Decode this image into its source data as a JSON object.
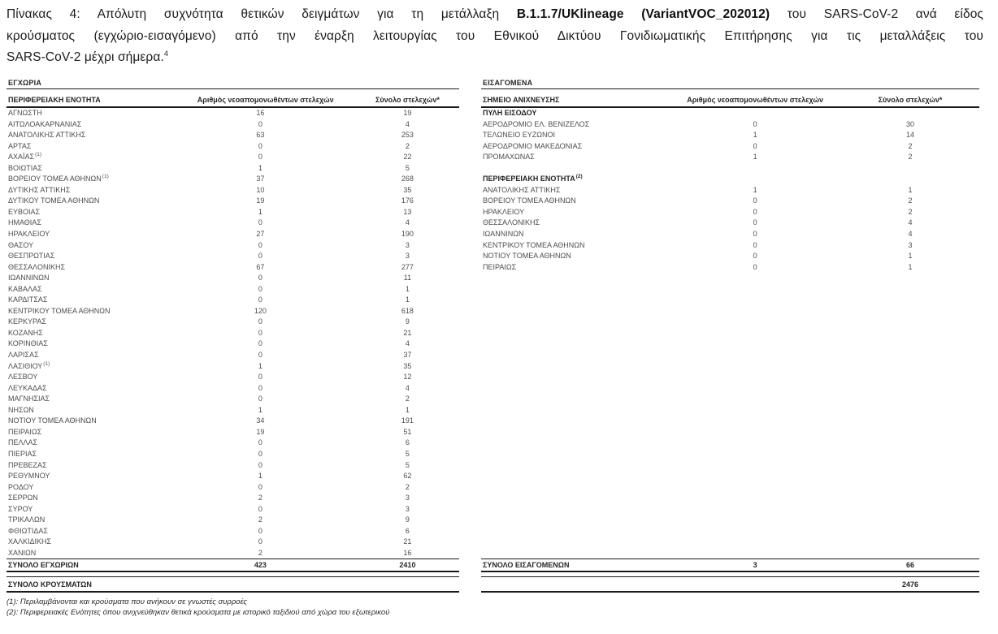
{
  "colors": {
    "text": "#4d4d4d",
    "heading": "#262626",
    "border": "#1a1a1a",
    "background": "#ffffff"
  },
  "title": {
    "line1_pre": "Πίνακας 4:  Απόλυτη συχνότητα θετικών δειγμάτων για τη μετάλλαξη ",
    "line1_bold": "B.1.1.7/UKlineage (VariantVOC_202012)",
    "line1_post": " του SARS-CoV-2 ανά είδος",
    "line2": "κρούσματος (εγχώριο-εισαγόμενο) από την έναρξη λειτουργίας του Εθνικού Δικτύου Γονιδιωματικής Επιτήρησης για τις μεταλλάξεις του",
    "line3": "SARS-CoV-2 μέχρι σήμερα.",
    "footnote_ref": "4"
  },
  "domestic_table": {
    "section_label": "ΕΓΧΩΡΙΑ",
    "columns": [
      "ΠΕΡΙΦΕΡΕΙΑΚΗ ΕΝΟΤΗΤΑ",
      "Αριθμός νεοαπομονωθέντων στελεχών",
      "Σύνολο στελεχών*"
    ],
    "rows": [
      {
        "label": "ΑΓΝΩΣΤΗ",
        "new_isolates": "16",
        "total": "19"
      },
      {
        "label": "ΑΙΤΩΛΟΑΚΑΡΝΑΝΙΑΣ",
        "new_isolates": "0",
        "total": "4"
      },
      {
        "label": "ΑΝΑΤΟΛΙΚΗΣ ΑΤΤΙΚΗΣ",
        "new_isolates": "63",
        "total": "253"
      },
      {
        "label": "ΑΡΤΑΣ",
        "new_isolates": "0",
        "total": "2"
      },
      {
        "label": "ΑΧΑΪΑΣ",
        "sup": "(1)",
        "new_isolates": "0",
        "total": "22"
      },
      {
        "label": "ΒΟΙΩΤΙΑΣ",
        "new_isolates": "1",
        "total": "5"
      },
      {
        "label": "ΒΟΡΕΙΟΥ ΤΟΜΕΑ ΑΘΗΝΩΝ",
        "sup": "(1)",
        "new_isolates": "37",
        "total": "268"
      },
      {
        "label": "ΔΥΤΙΚΗΣ ΑΤΤΙΚΗΣ",
        "new_isolates": "10",
        "total": "35"
      },
      {
        "label": "ΔΥΤΙΚΟΥ ΤΟΜΕΑ ΑΘΗΝΩΝ",
        "new_isolates": "19",
        "total": "176"
      },
      {
        "label": "ΕΥΒΟΙΑΣ",
        "new_isolates": "1",
        "total": "13"
      },
      {
        "label": "ΗΜΑΘΙΑΣ",
        "new_isolates": "0",
        "total": "4"
      },
      {
        "label": "ΗΡΑΚΛΕΙΟΥ",
        "new_isolates": "27",
        "total": "190"
      },
      {
        "label": "ΘΑΣΟΥ",
        "new_isolates": "0",
        "total": "3"
      },
      {
        "label": "ΘΕΣΠΡΩΤΙΑΣ",
        "new_isolates": "0",
        "total": "3"
      },
      {
        "label": "ΘΕΣΣΑΛΟΝΙΚΗΣ",
        "new_isolates": "67",
        "total": "277"
      },
      {
        "label": "ΙΩΑΝΝΙΝΩΝ",
        "new_isolates": "0",
        "total": "11"
      },
      {
        "label": "ΚΑΒΑΛΑΣ",
        "new_isolates": "0",
        "total": "1"
      },
      {
        "label": "ΚΑΡΔΙΤΣΑΣ",
        "new_isolates": "0",
        "total": "1"
      },
      {
        "label": "ΚΕΝΤΡΙΚΟΥ ΤΟΜΕΑ ΑΘΗΝΩΝ",
        "new_isolates": "120",
        "total": "618"
      },
      {
        "label": "ΚΕΡΚΥΡΑΣ",
        "new_isolates": "0",
        "total": "9"
      },
      {
        "label": "ΚΟΖΑΝΗΣ",
        "new_isolates": "0",
        "total": "21"
      },
      {
        "label": "ΚΟΡΙΝΘΙΑΣ",
        "new_isolates": "0",
        "total": "4"
      },
      {
        "label": "ΛΑΡΙΣΑΣ",
        "new_isolates": "0",
        "total": "37"
      },
      {
        "label": "ΛΑΣΙΘΙΟΥ",
        "sup": "(1)",
        "new_isolates": "1",
        "total": "35"
      },
      {
        "label": "ΛΕΣΒΟΥ",
        "new_isolates": "0",
        "total": "12"
      },
      {
        "label": "ΛΕΥΚΑΔΑΣ",
        "new_isolates": "0",
        "total": "4"
      },
      {
        "label": "ΜΑΓΝΗΣΙΑΣ",
        "new_isolates": "0",
        "total": "2"
      },
      {
        "label": "ΝΗΣΩΝ",
        "new_isolates": "1",
        "total": "1"
      },
      {
        "label": "ΝΟΤΙΟΥ ΤΟΜΕΑ ΑΘΗΝΩΝ",
        "new_isolates": "34",
        "total": "191"
      },
      {
        "label": "ΠΕΙΡΑΙΩΣ",
        "new_isolates": "19",
        "total": "51"
      },
      {
        "label": "ΠΕΛΛΑΣ",
        "new_isolates": "0",
        "total": "6"
      },
      {
        "label": "ΠΙΕΡΙΑΣ",
        "new_isolates": "0",
        "total": "5"
      },
      {
        "label": "ΠΡΕΒΕΖΑΣ",
        "new_isolates": "0",
        "total": "5"
      },
      {
        "label": "ΡΕΘΥΜΝΟΥ",
        "new_isolates": "1",
        "total": "62"
      },
      {
        "label": "ΡΟΔΟΥ",
        "new_isolates": "0",
        "total": "2"
      },
      {
        "label": "ΣΕΡΡΩΝ",
        "new_isolates": "2",
        "total": "3"
      },
      {
        "label": "ΣΥΡΟΥ",
        "new_isolates": "0",
        "total": "3"
      },
      {
        "label": "ΤΡΙΚΑΛΩΝ",
        "new_isolates": "2",
        "total": "9"
      },
      {
        "label": "ΦΘΙΩΤΙΔΑΣ",
        "new_isolates": "0",
        "total": "6"
      },
      {
        "label": "ΧΑΛΚΙΔΙΚΗΣ",
        "new_isolates": "0",
        "total": "21"
      },
      {
        "label": "ΧΑΝΙΩΝ",
        "new_isolates": "2",
        "total": "16"
      }
    ],
    "total_row": {
      "label": "ΣΥΝΟΛΟ ΕΓΧΩΡΙΩΝ",
      "new_isolates": "423",
      "total": "2410"
    }
  },
  "imported_table": {
    "section_label": "ΕΙΣΑΓΟΜΕΝΑ",
    "columns": [
      "ΣΗΜΕΙΟ ΑΝΙΧΝΕΥΣΗΣ",
      "Αριθμός νεοαπομονωθέντων στελεχών",
      "Σύνολο στελεχών*"
    ],
    "rows": [
      {
        "type": "sub",
        "label": "ΠΥΛΗ ΕΙΣΟΔΟΥ"
      },
      {
        "label": "ΑΕΡΟΔΡΟΜΙΟ ΕΛ. ΒΕΝΙΖΕΛΟΣ",
        "new_isolates": "0",
        "total": "30"
      },
      {
        "label": "ΤΕΛΩΝΕΙΟ ΕΥΖΩΝΟΙ",
        "new_isolates": "1",
        "total": "14"
      },
      {
        "label": "ΑΕΡΟΔΡΟΜΙΟ ΜΑΚΕΔΟΝΙΑΣ",
        "new_isolates": "0",
        "total": "2"
      },
      {
        "label": "ΠΡΟΜΑΧΩΝΑΣ",
        "new_isolates": "1",
        "total": "2"
      },
      {
        "type": "spacer"
      },
      {
        "type": "sub",
        "label": "ΠΕΡΙΦΕΡΕΙΑΚΗ ΕΝΟΤΗΤΑ",
        "sup": "(2)"
      },
      {
        "label": "ΑΝΑΤΟΛΙΚΗΣ ΑΤΤΙΚΗΣ",
        "new_isolates": "1",
        "total": "1"
      },
      {
        "label": "ΒΟΡΕΙΟΥ ΤΟΜΕΑ ΑΘΗΝΩΝ",
        "new_isolates": "0",
        "total": "2"
      },
      {
        "label": "ΗΡΑΚΛΕΙΟΥ",
        "new_isolates": "0",
        "total": "2"
      },
      {
        "label": "ΘΕΣΣΑΛΟΝΙΚΗΣ",
        "new_isolates": "0",
        "total": "4"
      },
      {
        "label": "ΙΩΑΝΝΙΝΩΝ",
        "new_isolates": "0",
        "total": "4"
      },
      {
        "label": "ΚΕΝΤΡΙΚΟΥ ΤΟΜΕΑ ΑΘΗΝΩΝ",
        "new_isolates": "0",
        "total": "3"
      },
      {
        "label": "ΝΟΤΙΟΥ ΤΟΜΕΑ ΑΘΗΝΩΝ",
        "new_isolates": "0",
        "total": "1"
      },
      {
        "label": "ΠΕΙΡΑΙΩΣ",
        "new_isolates": "0",
        "total": "1"
      }
    ],
    "total_row": {
      "label": "ΣΥΝΟΛΟ ΕΙΣΑΓΟΜΕΝΩΝ",
      "new_isolates": "3",
      "total": "66"
    }
  },
  "grand_total": {
    "label": "ΣΥΝΟΛΟ ΚΡΟΥΣΜΑΤΩΝ",
    "value": "2476"
  },
  "footnotes": [
    "(1): Περιλαμβάνονται και κρούσματα που ανήκουν σε γνωστές συρροές",
    "(2): Περιφερειακές Ενότητες όπου ανιχνεύθηκαν θετικά κρούσματα με ιστορικό ταξιδιού από χώρα του εξωτερικού"
  ]
}
